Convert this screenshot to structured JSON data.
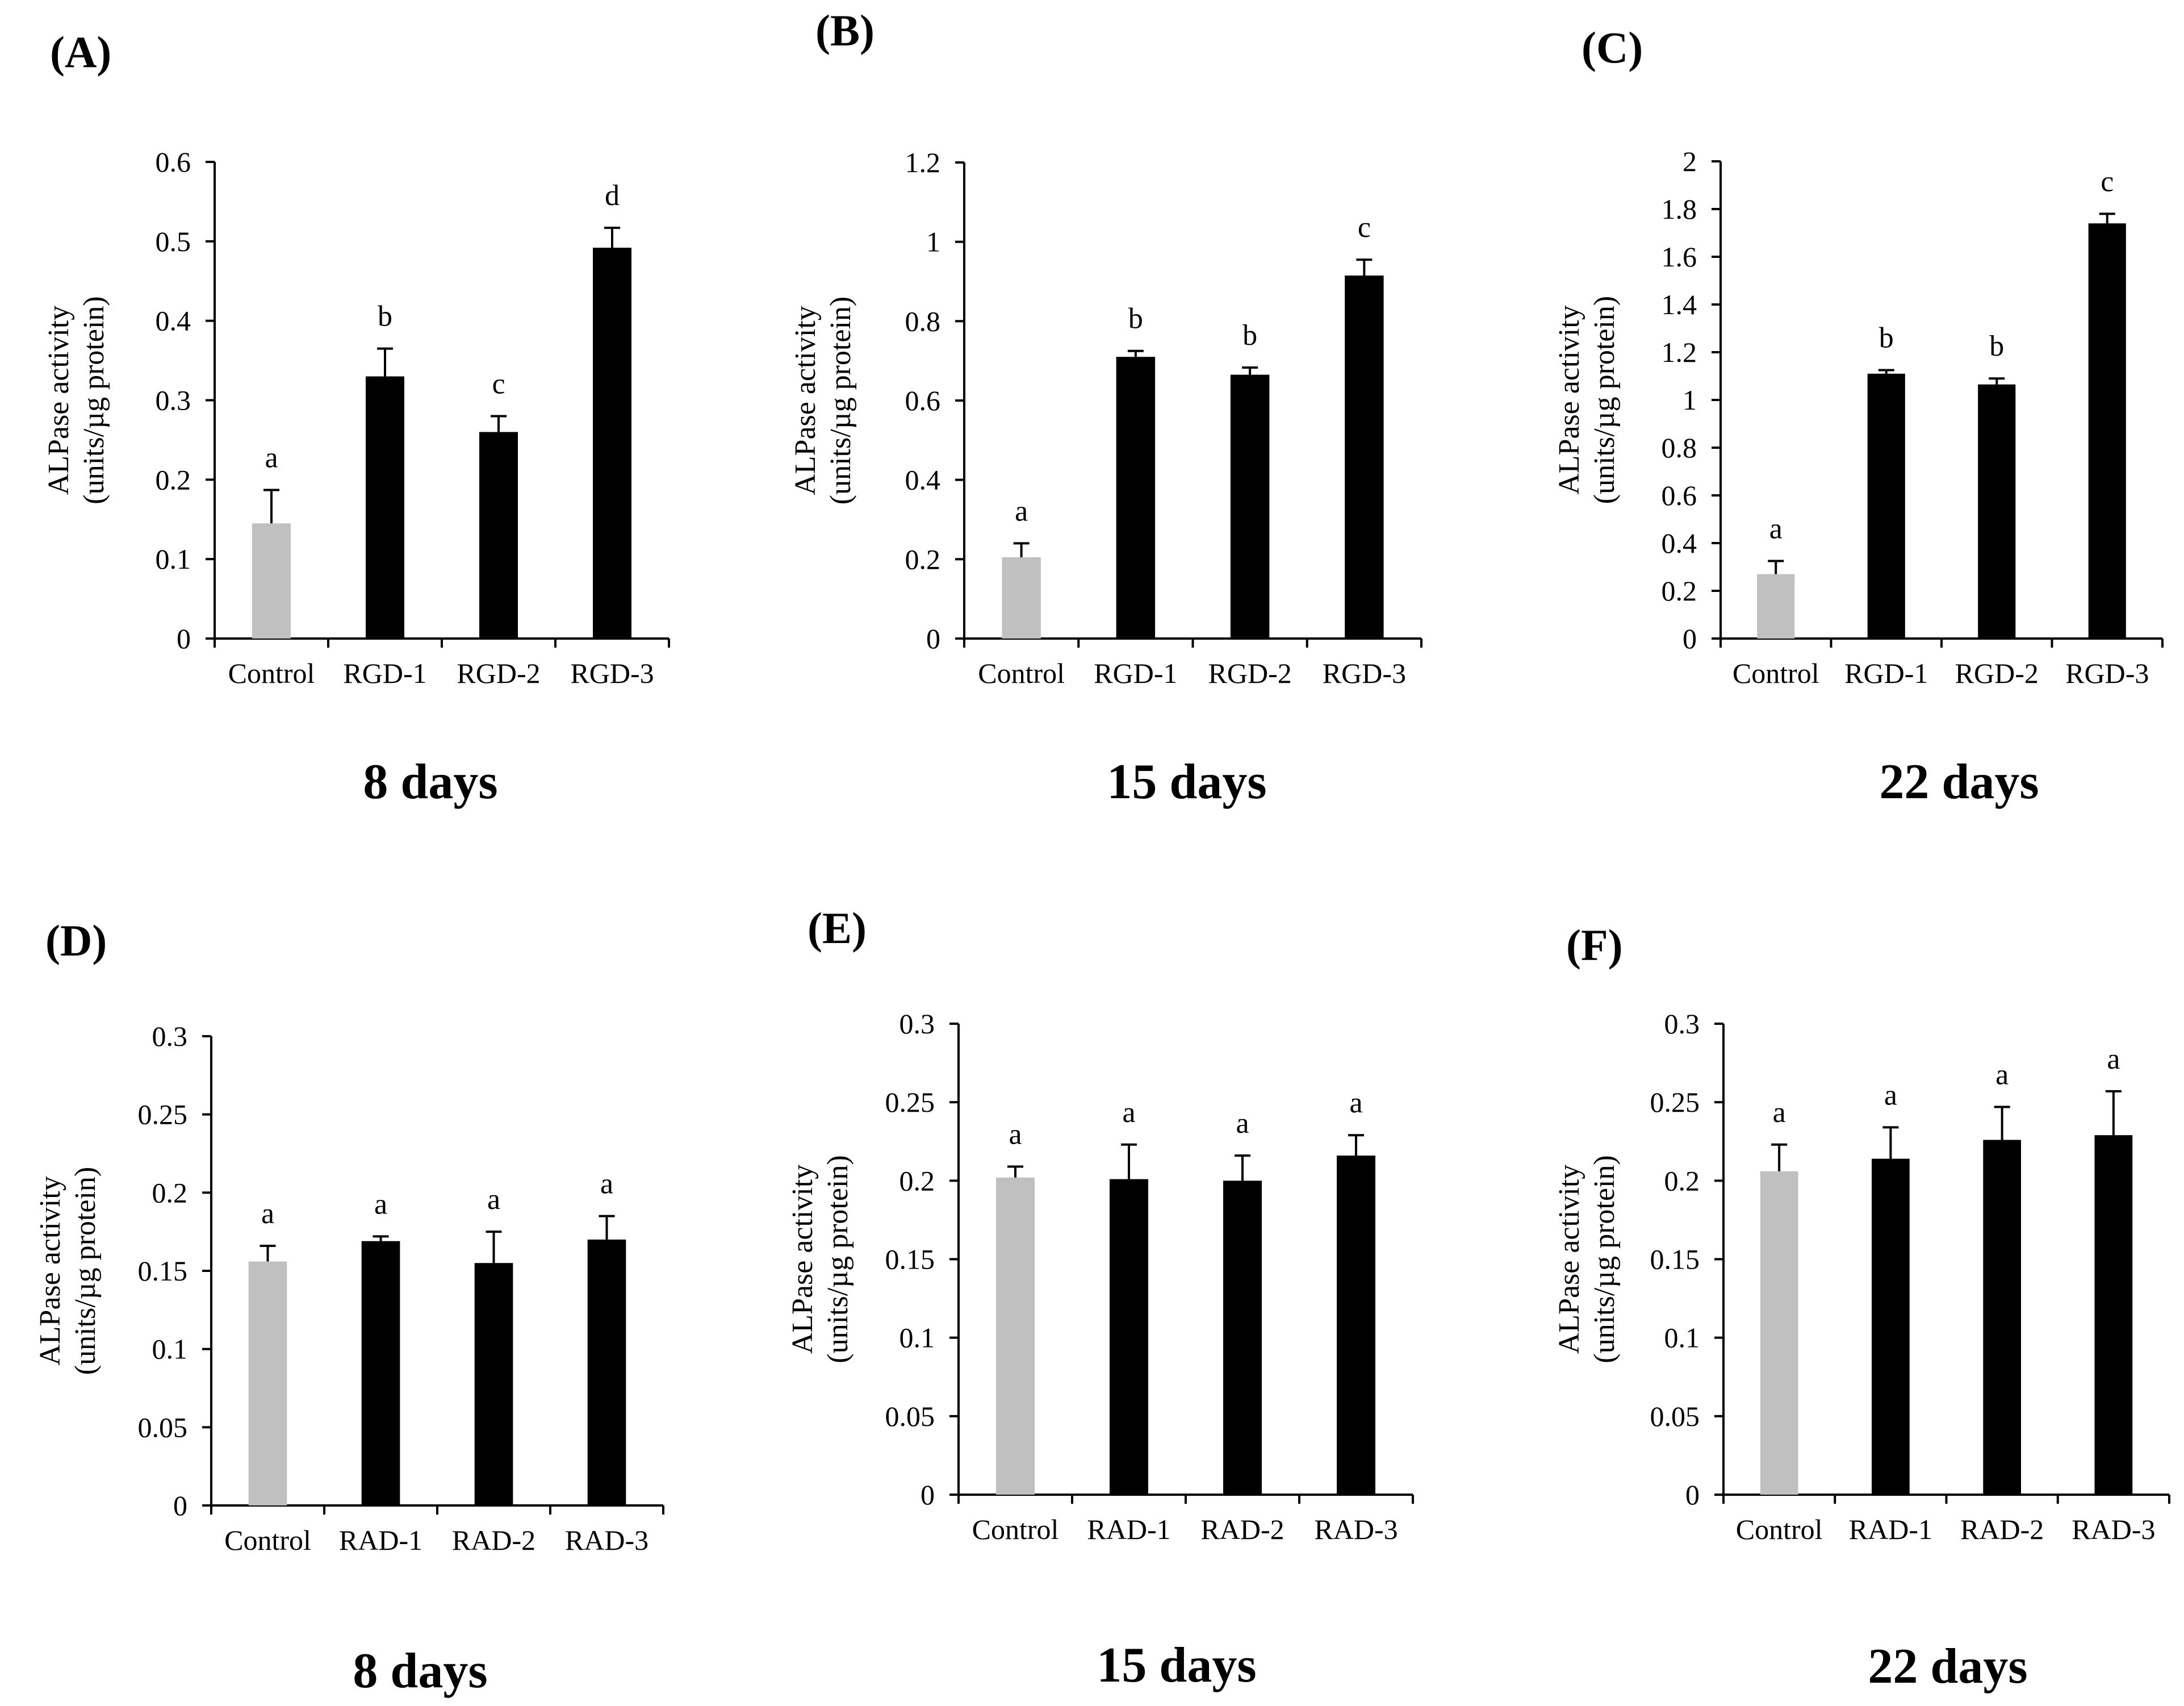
{
  "figure": {
    "y_axis_label_line1": "ALPase activity",
    "y_axis_label_line2": "(units/µg protein)"
  },
  "colors": {
    "control": "#c0c0c0",
    "treatment": "#000000",
    "axis": "#000000"
  },
  "chart_data": [
    {
      "type": "bar",
      "panel": "(A)",
      "footer": "8 days",
      "categories": [
        "Control",
        "RGD-1",
        "RGD-2",
        "RGD-3"
      ],
      "values": [
        0.145,
        0.33,
        0.26,
        0.492
      ],
      "errors": [
        0.042,
        0.035,
        0.02,
        0.025
      ],
      "significance": [
        "a",
        "b",
        "c",
        "d"
      ],
      "ylim": [
        0,
        0.6
      ],
      "yticks": [
        0,
        0.1,
        0.2,
        0.3,
        0.4,
        0.5,
        0.6
      ],
      "ytick_labels": [
        "0",
        "0.1",
        "0.2",
        "0.3",
        "0.4",
        "0.5",
        "0.6"
      ]
    },
    {
      "type": "bar",
      "panel": "(B)",
      "footer": "15 days",
      "categories": [
        "Control",
        "RGD-1",
        "RGD-2",
        "RGD-3"
      ],
      "values": [
        0.205,
        0.71,
        0.665,
        0.915
      ],
      "errors": [
        0.035,
        0.015,
        0.018,
        0.04
      ],
      "significance": [
        "a",
        "b",
        "b",
        "c"
      ],
      "ylim": [
        0,
        1.2
      ],
      "yticks": [
        0,
        0.2,
        0.4,
        0.6,
        0.8,
        1.0,
        1.2
      ],
      "ytick_labels": [
        "0",
        "0.2",
        "0.4",
        "0.6",
        "0.8",
        "1",
        "1.2"
      ]
    },
    {
      "type": "bar",
      "panel": "(C)",
      "footer": "22 days",
      "categories": [
        "Control",
        "RGD-1",
        "RGD-2",
        "RGD-3"
      ],
      "values": [
        0.27,
        1.11,
        1.065,
        1.74
      ],
      "errors": [
        0.055,
        0.015,
        0.025,
        0.04
      ],
      "significance": [
        "a",
        "b",
        "b",
        "c"
      ],
      "ylim": [
        0,
        2.0
      ],
      "yticks": [
        0,
        0.2,
        0.4,
        0.6,
        0.8,
        1.0,
        1.2,
        1.4,
        1.6,
        1.8,
        2.0
      ],
      "ytick_labels": [
        "0",
        "0.2",
        "0.4",
        "0.6",
        "0.8",
        "1",
        "1.2",
        "1.4",
        "1.6",
        "1.8",
        "2"
      ]
    },
    {
      "type": "bar",
      "panel": "(D)",
      "footer": "8 days",
      "categories": [
        "Control",
        "RAD-1",
        "RAD-2",
        "RAD-3"
      ],
      "values": [
        0.156,
        0.169,
        0.155,
        0.17
      ],
      "errors": [
        0.01,
        0.003,
        0.02,
        0.015
      ],
      "significance": [
        "a",
        "a",
        "a",
        "a"
      ],
      "ylim": [
        0,
        0.3
      ],
      "yticks": [
        0,
        0.05,
        0.1,
        0.15,
        0.2,
        0.25,
        0.3
      ],
      "ytick_labels": [
        "0",
        "0.05",
        "0.1",
        "0.15",
        "0.2",
        "0.25",
        "0.3"
      ]
    },
    {
      "type": "bar",
      "panel": "(E)",
      "footer": "15 days",
      "categories": [
        "Control",
        "RAD-1",
        "RAD-2",
        "RAD-3"
      ],
      "values": [
        0.202,
        0.201,
        0.2,
        0.216
      ],
      "errors": [
        0.007,
        0.022,
        0.016,
        0.013
      ],
      "significance": [
        "a",
        "a",
        "a",
        "a"
      ],
      "ylim": [
        0,
        0.3
      ],
      "yticks": [
        0,
        0.05,
        0.1,
        0.15,
        0.2,
        0.25,
        0.3
      ],
      "ytick_labels": [
        "0",
        "0.05",
        "0.1",
        "0.15",
        "0.2",
        "0.25",
        "0.3"
      ]
    },
    {
      "type": "bar",
      "panel": "(F)",
      "footer": "22 days",
      "categories": [
        "Control",
        "RAD-1",
        "RAD-2",
        "RAD-3"
      ],
      "values": [
        0.206,
        0.214,
        0.226,
        0.229
      ],
      "errors": [
        0.017,
        0.02,
        0.021,
        0.028
      ],
      "significance": [
        "a",
        "a",
        "a",
        "a"
      ],
      "ylim": [
        0,
        0.3
      ],
      "yticks": [
        0,
        0.05,
        0.1,
        0.15,
        0.2,
        0.25,
        0.3
      ],
      "ytick_labels": [
        "0",
        "0.05",
        "0.1",
        "0.15",
        "0.2",
        "0.25",
        "0.3"
      ]
    }
  ]
}
